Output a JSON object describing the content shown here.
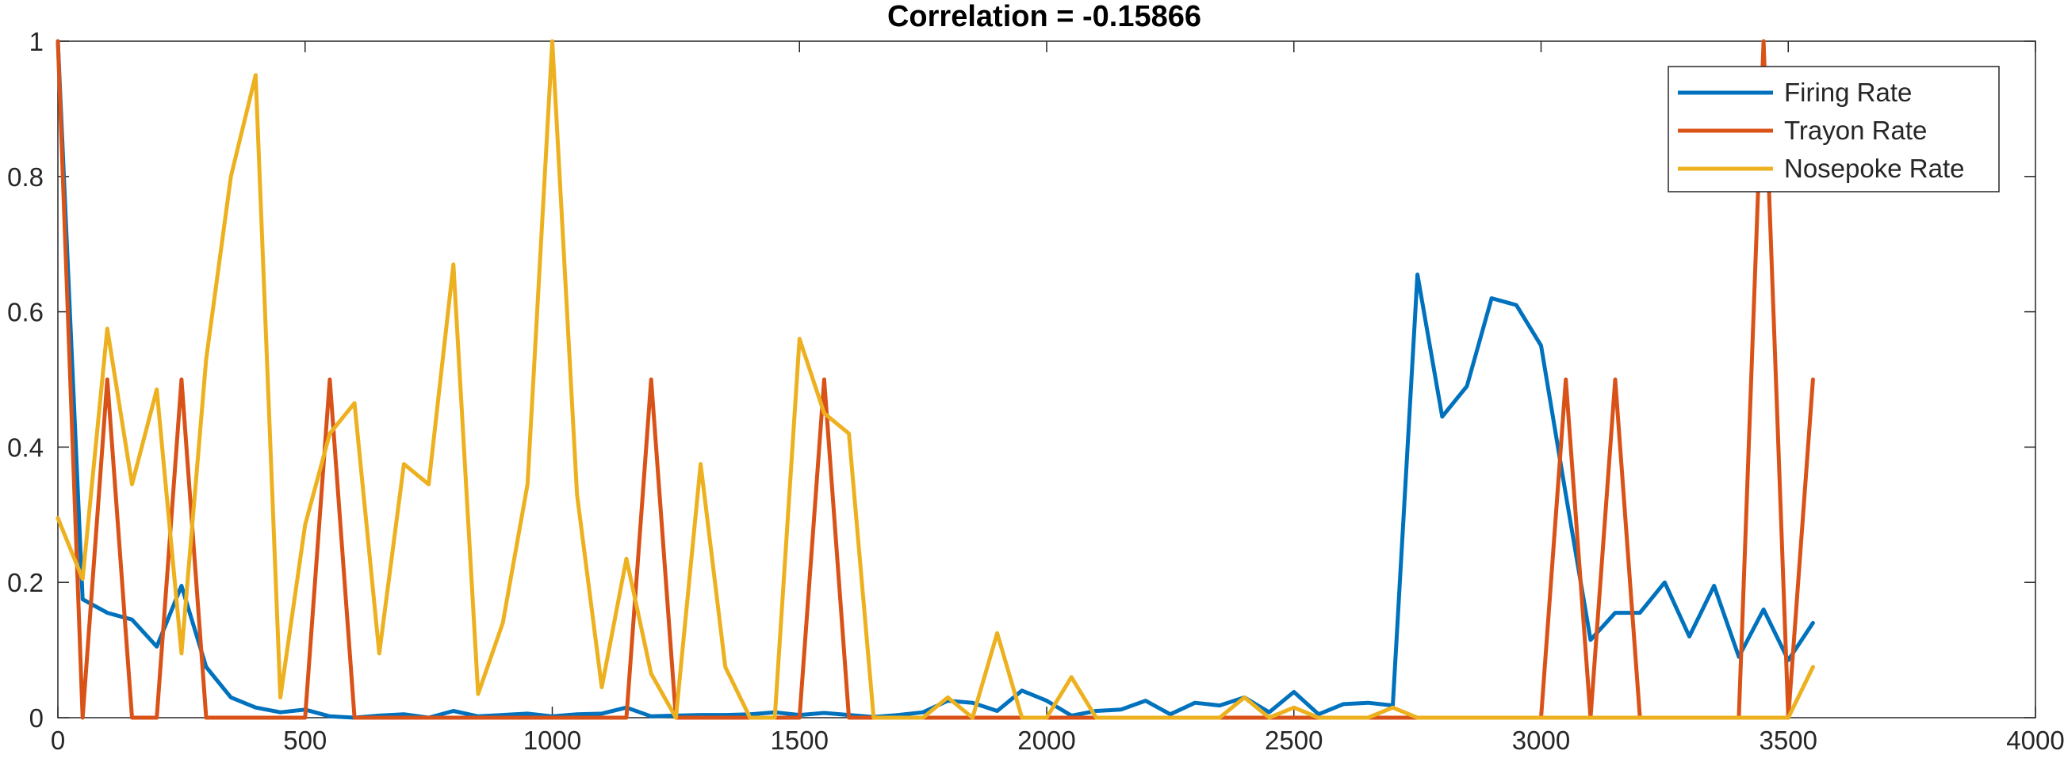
{
  "chart_data": {
    "type": "line",
    "title": "Correlation = -0.15866",
    "xlabel": "",
    "ylabel": "",
    "xlim": [
      0,
      4000
    ],
    "ylim": [
      0,
      1
    ],
    "xticks": [
      0,
      500,
      1000,
      1500,
      2000,
      2500,
      3000,
      3500,
      4000
    ],
    "yticks": [
      0,
      0.2,
      0.4,
      0.6,
      0.8,
      1
    ],
    "xtick_labels": [
      "0",
      "500",
      "1000",
      "1500",
      "2000",
      "2500",
      "3000",
      "3500",
      "4000"
    ],
    "ytick_labels": [
      "0",
      "0.2",
      "0.4",
      "0.6",
      "0.8",
      "1"
    ],
    "grid": false,
    "legend_location": "top-right",
    "x": [
      0,
      50,
      100,
      150,
      200,
      250,
      300,
      350,
      400,
      450,
      500,
      550,
      600,
      650,
      700,
      750,
      800,
      850,
      900,
      950,
      1000,
      1050,
      1100,
      1150,
      1200,
      1250,
      1300,
      1350,
      1400,
      1450,
      1500,
      1550,
      1600,
      1650,
      1700,
      1750,
      1800,
      1850,
      1900,
      1950,
      2000,
      2050,
      2100,
      2150,
      2200,
      2250,
      2300,
      2350,
      2400,
      2450,
      2500,
      2550,
      2600,
      2650,
      2700,
      2750,
      2800,
      2850,
      2900,
      2950,
      3000,
      3050,
      3100,
      3150,
      3200,
      3250,
      3300,
      3350,
      3400,
      3450,
      3500,
      3550
    ],
    "series": [
      {
        "name": "Firing Rate",
        "color": "#0072BD",
        "values": [
          1,
          0.175,
          0.155,
          0.145,
          0.105,
          0.195,
          0.075,
          0.03,
          0.015,
          0.008,
          0.012,
          0.002,
          0,
          0.003,
          0.005,
          0,
          0.01,
          0.002,
          0.004,
          0.006,
          0.002,
          0.005,
          0.006,
          0.015,
          0.002,
          0.003,
          0.004,
          0.004,
          0.005,
          0.008,
          0.004,
          0.007,
          0.004,
          0.001,
          0.004,
          0.008,
          0.025,
          0.022,
          0.01,
          0.04,
          0.025,
          0.003,
          0.01,
          0.012,
          0.025,
          0.005,
          0.022,
          0.018,
          0.03,
          0.008,
          0.038,
          0.005,
          0.02,
          0.022,
          0.018,
          0.655,
          0.445,
          0.49,
          0.62,
          0.61,
          0.55,
          0.33,
          0.115,
          0.155,
          0.155,
          0.2,
          0.12,
          0.195,
          0.09,
          0.16,
          0.085,
          0.14
        ]
      },
      {
        "name": "Trayon Rate",
        "color": "#D95319",
        "values": [
          1,
          0,
          0.5,
          0,
          0,
          0.5,
          0,
          0,
          0,
          0,
          0,
          0.5,
          0,
          0,
          0,
          0,
          0,
          0,
          0,
          0,
          0,
          0,
          0,
          0,
          0.5,
          0,
          0,
          0,
          0,
          0,
          0,
          0.5,
          0,
          0,
          0,
          0,
          0,
          0,
          0,
          0,
          0,
          0,
          0,
          0,
          0,
          0,
          0,
          0,
          0,
          0,
          0,
          0,
          0,
          0,
          0,
          0,
          0,
          0,
          0,
          0,
          0,
          0.5,
          0,
          0.5,
          0,
          0,
          0,
          0,
          0,
          1,
          0,
          0.5
        ]
      },
      {
        "name": "Nosepoke Rate",
        "color": "#EDB120",
        "values": [
          0.295,
          0.205,
          0.575,
          0.345,
          0.485,
          0.095,
          0.53,
          0.8,
          0.95,
          0.03,
          0.285,
          0.42,
          0.465,
          0.095,
          0.375,
          0.345,
          0.67,
          0.035,
          0.14,
          0.345,
          1,
          0.33,
          0.045,
          0.235,
          0.065,
          0,
          0.375,
          0.075,
          0,
          0,
          0.56,
          0.45,
          0.42,
          0,
          0,
          0,
          0.03,
          0,
          0.125,
          0,
          0,
          0.06,
          0,
          0,
          0,
          0,
          0,
          0,
          0.03,
          0,
          0.015,
          0,
          0,
          0,
          0.015,
          0,
          0,
          0,
          0,
          0,
          0,
          0,
          0,
          0,
          0,
          0,
          0,
          0,
          0,
          0,
          0,
          0.075
        ]
      }
    ]
  }
}
